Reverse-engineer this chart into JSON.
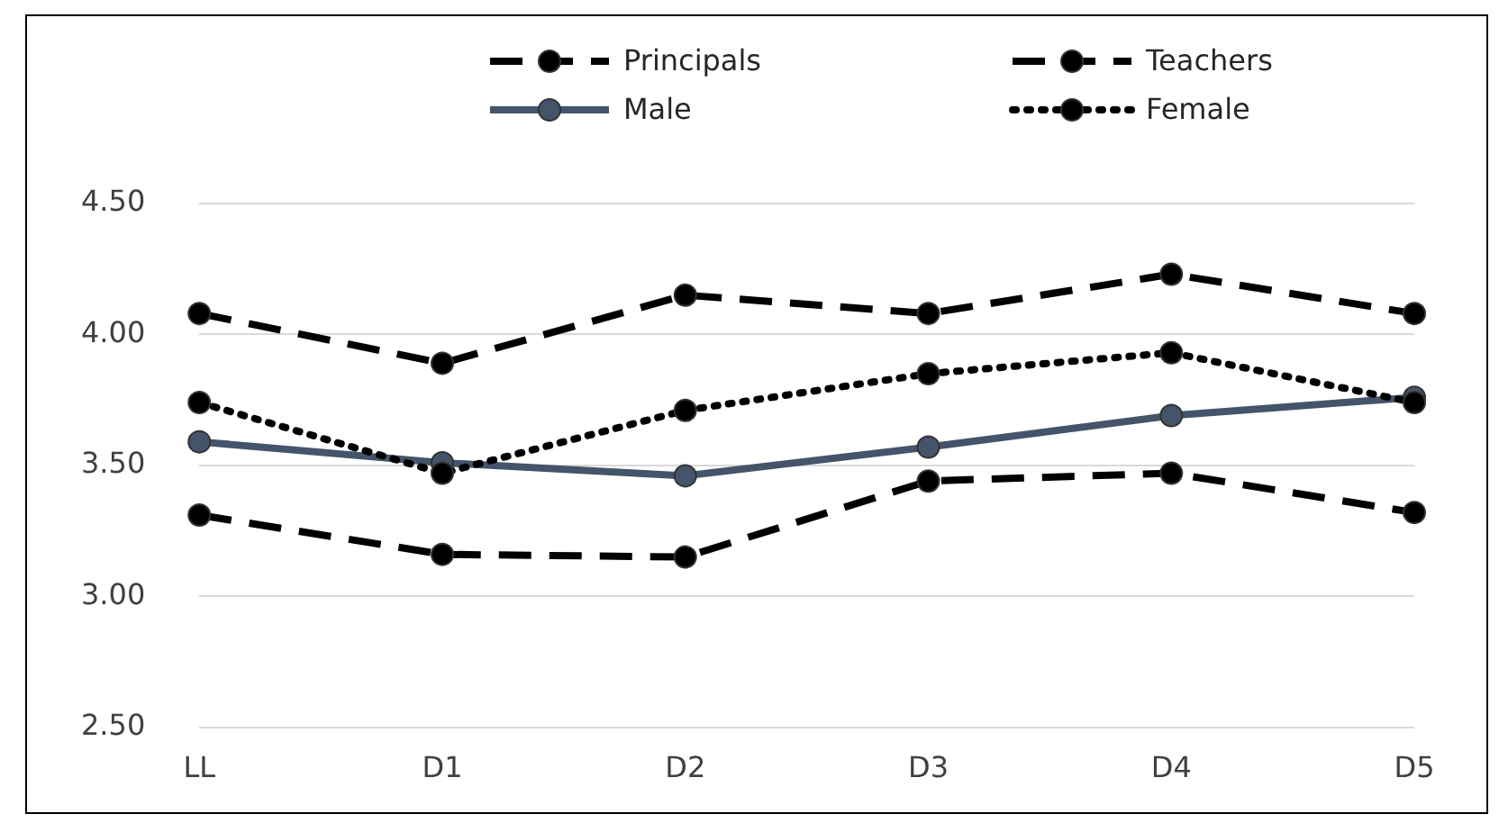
{
  "chart_data": {
    "type": "line",
    "categories": [
      "LL",
      "D1",
      "D2",
      "D3",
      "D4",
      "D5"
    ],
    "series": [
      {
        "name": "Principals",
        "color": "#000000",
        "line_style": "dashed",
        "values": [
          4.08,
          3.89,
          4.15,
          4.08,
          4.23,
          4.08
        ]
      },
      {
        "name": "Teachers",
        "color": "#000000",
        "line_style": "dashed",
        "values": [
          3.31,
          3.16,
          3.15,
          3.44,
          3.47,
          3.32
        ]
      },
      {
        "name": "Male",
        "color": "#44546a",
        "line_style": "solid",
        "values": [
          3.59,
          3.51,
          3.46,
          3.57,
          3.69,
          3.76
        ]
      },
      {
        "name": "Female",
        "color": "#000000",
        "line_style": "dotted",
        "values": [
          3.74,
          3.47,
          3.71,
          3.85,
          3.93,
          3.74
        ]
      }
    ],
    "ylim": [
      2.5,
      4.5
    ],
    "yticks": [
      {
        "value": 2.5,
        "label": "2.50"
      },
      {
        "value": 3,
        "label": "3.00"
      },
      {
        "value": 3.5,
        "label": "3.50"
      },
      {
        "value": 4,
        "label": "4.00"
      },
      {
        "value": 4.5,
        "label": "4.50"
      }
    ],
    "grid": "y",
    "legend": "top",
    "marker": "circle"
  }
}
